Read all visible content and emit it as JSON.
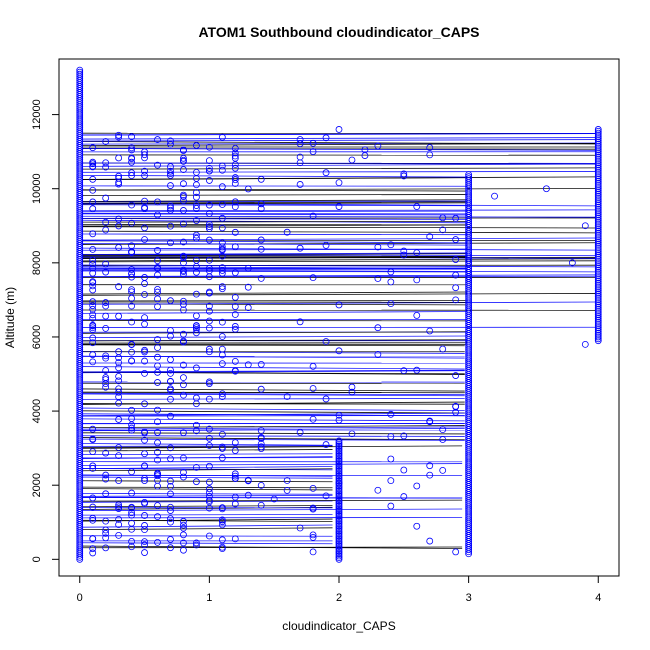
{
  "chart_data": {
    "type": "scatter",
    "title": "ATOM1 Southbound cloudindicator_CAPS",
    "xlabel": "cloudindicator_CAPS",
    "ylabel": "Altitude (m)",
    "xlim": [
      -0.16,
      4.16
    ],
    "ylim": [
      -450,
      13500
    ],
    "x_ticks": [
      0,
      1,
      2,
      3,
      4
    ],
    "y_ticks": [
      0,
      2000,
      4000,
      6000,
      8000,
      10000,
      12000
    ],
    "grid": false,
    "legend": "none",
    "colors": {
      "points": "#0000ff",
      "lines_dark": "#000000",
      "lines_blue": "#0000ff"
    },
    "x_categories": [
      0,
      1,
      2,
      3,
      4
    ],
    "y_range_by_category": {
      "0": [
        0,
        13200
      ],
      "2": [
        0,
        3200
      ],
      "3": [
        150,
        10400
      ],
      "4": [
        5900,
        11600
      ]
    },
    "note_points": [
      {
        "x": 2.0,
        "y": 11600
      },
      {
        "x": 1.7,
        "y": 10700
      },
      {
        "x": 2.5,
        "y": 10400
      },
      {
        "x": 3.6,
        "y": 10000
      },
      {
        "x": 3.2,
        "y": 9800
      },
      {
        "x": 3.9,
        "y": 9000
      },
      {
        "x": 2.9,
        "y": 7000
      },
      {
        "x": 3.8,
        "y": 8000
      },
      {
        "x": 3.9,
        "y": 5800
      },
      {
        "x": 2.4,
        "y": 6900
      },
      {
        "x": 2.8,
        "y": 3500
      },
      {
        "x": 2.9,
        "y": 200
      }
    ]
  }
}
